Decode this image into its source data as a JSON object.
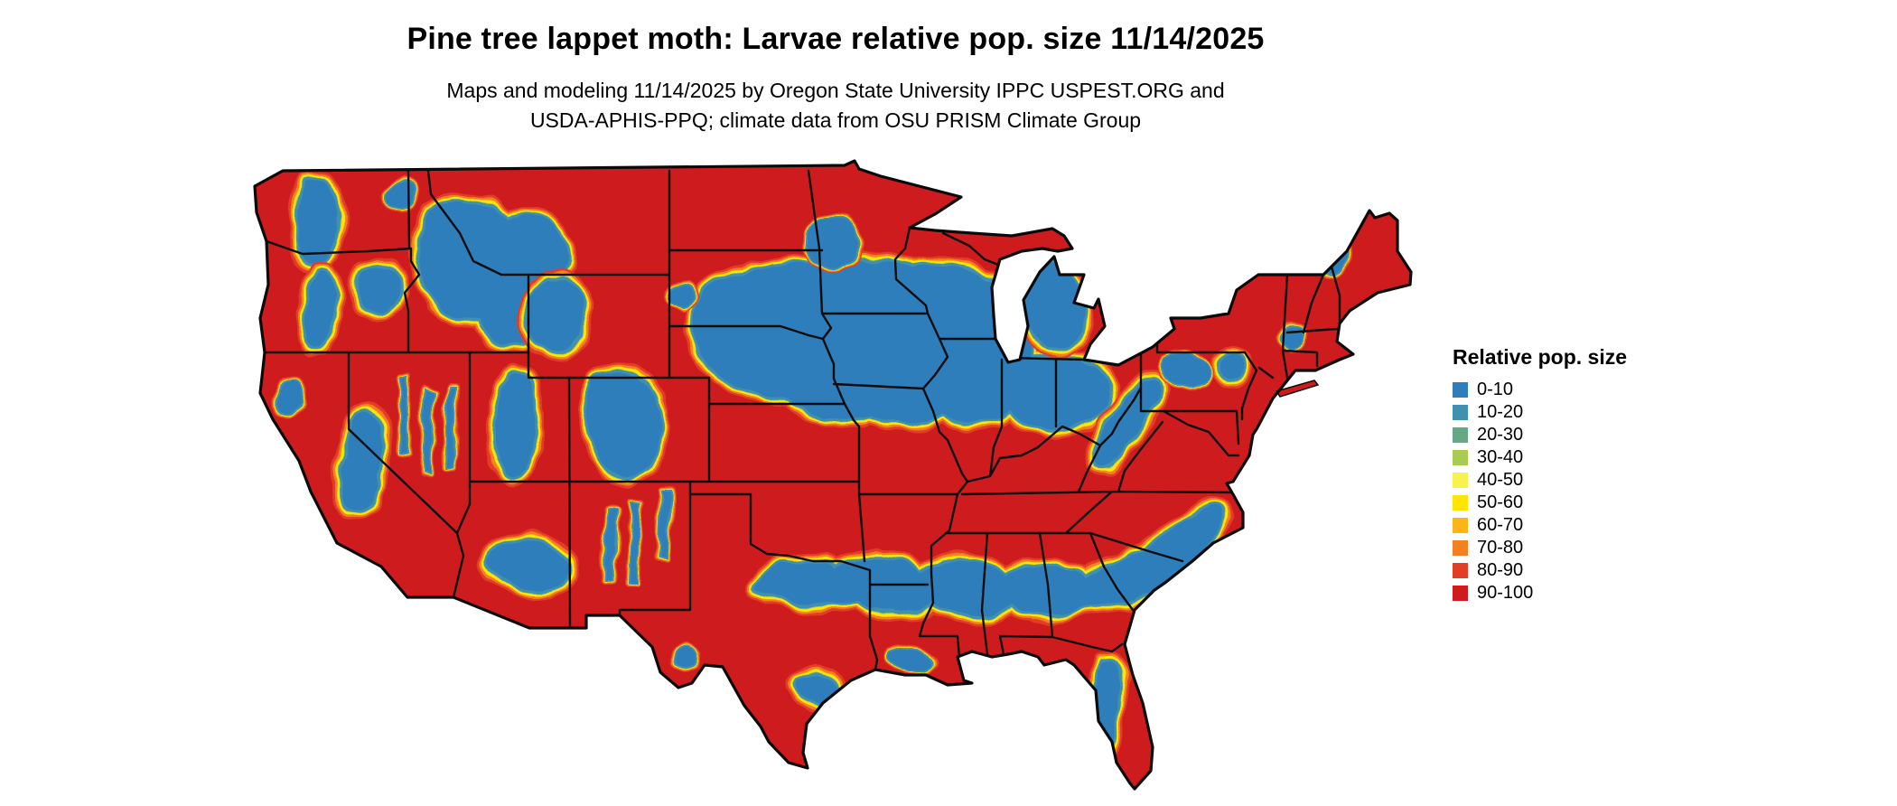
{
  "header": {
    "title": "Pine tree lappet moth: Larvae relative pop. size 11/14/2025",
    "subtitle_line1": "Maps and modeling 11/14/2025 by Oregon State University IPPC USPEST.ORG and",
    "subtitle_line2": "USDA-APHIS-PPQ; climate data from OSU PRISM Climate Group"
  },
  "map": {
    "area": "Continental United States"
  },
  "legend": {
    "title": "Relative pop. size",
    "items": [
      {
        "label": "0-10",
        "color": "#2E7EBC"
      },
      {
        "label": "10-20",
        "color": "#4190AE"
      },
      {
        "label": "20-30",
        "color": "#64A983"
      },
      {
        "label": "30-40",
        "color": "#A8CB52"
      },
      {
        "label": "40-50",
        "color": "#F6F24E"
      },
      {
        "label": "50-60",
        "color": "#FFE600"
      },
      {
        "label": "60-70",
        "color": "#FDB515"
      },
      {
        "label": "70-80",
        "color": "#F58020"
      },
      {
        "label": "80-90",
        "color": "#E23D25"
      },
      {
        "label": "90-100",
        "color": "#CE1C1E"
      }
    ]
  }
}
